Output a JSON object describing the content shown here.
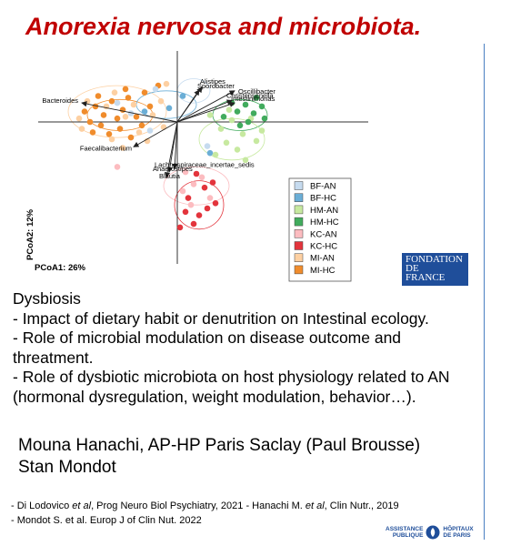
{
  "slide": {
    "title": "Anorexia nervosa and microbiota.",
    "body_lines": [
      "Dysbiosis",
      "- Impact of dietary habit or denutrition on Intestinal ecology.",
      "- Role of microbial modulation on disease outcome and",
      "threatment.",
      "- Role of dysbiotic microbiota on host physiology related to AN",
      "(hormonal dysregulation, weight modulation, behavior…)."
    ],
    "authors": [
      "Mouna Hanachi, AP-HP Paris Saclay (Paul Brousse)",
      "Stan Mondot"
    ],
    "references": {
      "ref1_a": "- Di Lodovico ",
      "ref1_b": "et al",
      "ref1_c": ", Prog Neuro Biol Psychiatry, 2021 - Hanachi M. ",
      "ref1_d": "et al",
      "ref1_e": ", Clin Nutr., 2019",
      "ref2": "- Mondot S. et al. Europ J of Clin Nut. 2022"
    },
    "logos": {
      "fondation": [
        "FONDATION",
        "DE",
        "FRANCE"
      ],
      "aphp_left": [
        "ASSISTANCE",
        "PUBLIQUE"
      ],
      "aphp_right": [
        "HÔPITAUX",
        "DE PARIS"
      ]
    },
    "colors": {
      "title": "#c00000",
      "fondation_bg": "#1f4e9a",
      "divider": "#4a7fc1"
    }
  },
  "chart_data": {
    "type": "scatter",
    "subtype": "PCoA biplot",
    "xlabel": "PCoA1: 26%",
    "ylabel": "PCoA2: 12%",
    "legend_position": "right",
    "groups": [
      {
        "name": "BF-AN",
        "color": "#c6dbef"
      },
      {
        "name": "BF-HC",
        "color": "#6baed6"
      },
      {
        "name": "HM-AN",
        "color": "#c7e9a0"
      },
      {
        "name": "HM-HC",
        "color": "#41ab5d"
      },
      {
        "name": "KC-AN",
        "color": "#fcbcc0"
      },
      {
        "name": "KC-HC",
        "color": "#e3343c"
      },
      {
        "name": "MI-AN",
        "color": "#fdd0a2"
      },
      {
        "name": "MI-HC",
        "color": "#f08c2c"
      }
    ],
    "vectors": [
      {
        "label": "Alistipes",
        "x": 0.45,
        "y": 1.0
      },
      {
        "label": "Sporobacter",
        "x": 0.4,
        "y": 0.92
      },
      {
        "label": "Oscillibacter",
        "x": 1.05,
        "y": 0.9
      },
      {
        "label": "Christensenella",
        "x": 1.0,
        "y": 0.62
      },
      {
        "label": "Intestinimonas",
        "x": 1.05,
        "y": 0.55
      },
      {
        "label": "Bacteroides",
        "x": -1.75,
        "y": 0.55
      },
      {
        "label": "Faecalibacterium",
        "x": -0.8,
        "y": -0.72
      },
      {
        "label": "Lachnospiraceae_incertae_sedis",
        "x": -0.05,
        "y": -1.35
      },
      {
        "label": "Anaerostipes",
        "x": -0.15,
        "y": -1.45
      },
      {
        "label": "Blautia",
        "x": -0.2,
        "y": -1.6
      }
    ],
    "points": [
      {
        "g": "MI-HC",
        "x": -1.5,
        "y": 0.45
      },
      {
        "g": "MI-HC",
        "x": -1.35,
        "y": 0.2
      },
      {
        "g": "MI-HC",
        "x": -1.2,
        "y": 0.6
      },
      {
        "g": "MI-HC",
        "x": -1.1,
        "y": 0.1
      },
      {
        "g": "MI-HC",
        "x": -1.4,
        "y": -0.1
      },
      {
        "g": "MI-HC",
        "x": -1.0,
        "y": 0.35
      },
      {
        "g": "MI-HC",
        "x": -0.9,
        "y": 0.7
      },
      {
        "g": "MI-HC",
        "x": -1.6,
        "y": 0.0
      },
      {
        "g": "MI-HC",
        "x": -1.25,
        "y": -0.35
      },
      {
        "g": "MI-HC",
        "x": -0.75,
        "y": 0.15
      },
      {
        "g": "MI-HC",
        "x": -1.7,
        "y": 0.3
      },
      {
        "g": "MI-HC",
        "x": -0.6,
        "y": 0.85
      },
      {
        "g": "MI-HC",
        "x": -1.05,
        "y": -0.2
      },
      {
        "g": "MI-HC",
        "x": -0.85,
        "y": -0.45
      },
      {
        "g": "MI-HC",
        "x": -1.45,
        "y": 0.75
      },
      {
        "g": "MI-HC",
        "x": -0.5,
        "y": 0.45
      },
      {
        "g": "MI-HC",
        "x": -0.35,
        "y": 1.05
      },
      {
        "g": "MI-HC",
        "x": -1.55,
        "y": -0.3
      },
      {
        "g": "MI-HC",
        "x": -0.95,
        "y": 0.95
      },
      {
        "g": "MI-HC",
        "x": -0.65,
        "y": -0.1
      },
      {
        "g": "MI-AN",
        "x": -1.3,
        "y": 0.45
      },
      {
        "g": "MI-AN",
        "x": -1.15,
        "y": 0.85
      },
      {
        "g": "MI-AN",
        "x": -0.95,
        "y": 0.15
      },
      {
        "g": "MI-AN",
        "x": -0.8,
        "y": 0.5
      },
      {
        "g": "MI-AN",
        "x": -1.65,
        "y": 0.6
      },
      {
        "g": "MI-AN",
        "x": -1.8,
        "y": 0.1
      },
      {
        "g": "MI-AN",
        "x": -1.2,
        "y": -0.5
      },
      {
        "g": "MI-AN",
        "x": -0.7,
        "y": -0.3
      },
      {
        "g": "MI-AN",
        "x": -0.45,
        "y": 0.2
      },
      {
        "g": "MI-AN",
        "x": -0.3,
        "y": 0.6
      },
      {
        "g": "MI-AN",
        "x": -0.2,
        "y": 1.1
      },
      {
        "g": "MI-AN",
        "x": -0.55,
        "y": -0.55
      },
      {
        "g": "MI-AN",
        "x": -1.0,
        "y": -0.75
      },
      {
        "g": "MI-AN",
        "x": -1.75,
        "y": -0.2
      },
      {
        "g": "MI-AN",
        "x": -0.25,
        "y": -0.15
      },
      {
        "g": "BF-AN",
        "x": -1.1,
        "y": 0.55
      },
      {
        "g": "BF-AN",
        "x": -0.85,
        "y": 0.25
      },
      {
        "g": "BF-AN",
        "x": -0.5,
        "y": -0.25
      },
      {
        "g": "BF-AN",
        "x": 0.55,
        "y": -0.7
      },
      {
        "g": "BF-AN",
        "x": -0.4,
        "y": 0.95
      },
      {
        "g": "BF-HC",
        "x": -0.6,
        "y": 0.3
      },
      {
        "g": "BF-HC",
        "x": 0.1,
        "y": 0.75
      },
      {
        "g": "BF-HC",
        "x": 0.6,
        "y": -0.9
      },
      {
        "g": "BF-HC",
        "x": -0.15,
        "y": 0.4
      },
      {
        "g": "HM-AN",
        "x": 0.8,
        "y": -0.2
      },
      {
        "g": "HM-AN",
        "x": 1.0,
        "y": 0.05
      },
      {
        "g": "HM-AN",
        "x": 1.2,
        "y": -0.35
      },
      {
        "g": "HM-AN",
        "x": 0.9,
        "y": -0.6
      },
      {
        "g": "HM-AN",
        "x": 1.35,
        "y": 0.1
      },
      {
        "g": "HM-AN",
        "x": 0.7,
        "y": -0.95
      },
      {
        "g": "HM-AN",
        "x": 1.1,
        "y": -0.8
      },
      {
        "g": "HM-AN",
        "x": 1.45,
        "y": -0.55
      },
      {
        "g": "HM-AN",
        "x": 0.6,
        "y": 0.2
      },
      {
        "g": "HM-AN",
        "x": 1.25,
        "y": -1.1
      },
      {
        "g": "HM-AN",
        "x": 0.95,
        "y": 0.35
      },
      {
        "g": "HM-AN",
        "x": 1.55,
        "y": -0.25
      },
      {
        "g": "HM-HC",
        "x": 1.1,
        "y": 0.3
      },
      {
        "g": "HM-HC",
        "x": 1.25,
        "y": 0.5
      },
      {
        "g": "HM-HC",
        "x": 1.4,
        "y": 0.25
      },
      {
        "g": "HM-HC",
        "x": 1.0,
        "y": 0.55
      },
      {
        "g": "HM-HC",
        "x": 1.55,
        "y": 0.45
      },
      {
        "g": "HM-HC",
        "x": 1.3,
        "y": 0.0
      },
      {
        "g": "HM-HC",
        "x": 1.15,
        "y": -0.1
      },
      {
        "g": "HM-HC",
        "x": 1.45,
        "y": 0.7
      },
      {
        "g": "HM-HC",
        "x": 0.85,
        "y": 0.15
      },
      {
        "g": "HM-HC",
        "x": 1.6,
        "y": 0.1
      },
      {
        "g": "KC-AN",
        "x": 0.15,
        "y": -1.45
      },
      {
        "g": "KC-AN",
        "x": 0.3,
        "y": -1.8
      },
      {
        "g": "KC-AN",
        "x": 0.45,
        "y": -1.6
      },
      {
        "g": "KC-AN",
        "x": 0.1,
        "y": -2.0
      },
      {
        "g": "KC-AN",
        "x": 0.6,
        "y": -2.2
      },
      {
        "g": "KC-AN",
        "x": 0.25,
        "y": -2.4
      },
      {
        "g": "KC-AN",
        "x": -1.1,
        "y": -1.3
      },
      {
        "g": "KC-HC",
        "x": 0.35,
        "y": -1.5
      },
      {
        "g": "KC-HC",
        "x": 0.5,
        "y": -1.9
      },
      {
        "g": "KC-HC",
        "x": 0.2,
        "y": -2.2
      },
      {
        "g": "KC-HC",
        "x": 0.55,
        "y": -2.5
      },
      {
        "g": "KC-HC",
        "x": 0.4,
        "y": -2.7
      },
      {
        "g": "KC-HC",
        "x": 0.7,
        "y": -2.35
      },
      {
        "g": "KC-HC",
        "x": 0.3,
        "y": -2.95
      },
      {
        "g": "KC-HC",
        "x": 0.15,
        "y": -2.6
      },
      {
        "g": "KC-HC",
        "x": 0.65,
        "y": -1.75
      },
      {
        "g": "KC-HC",
        "x": 0.05,
        "y": -3.05
      }
    ]
  }
}
